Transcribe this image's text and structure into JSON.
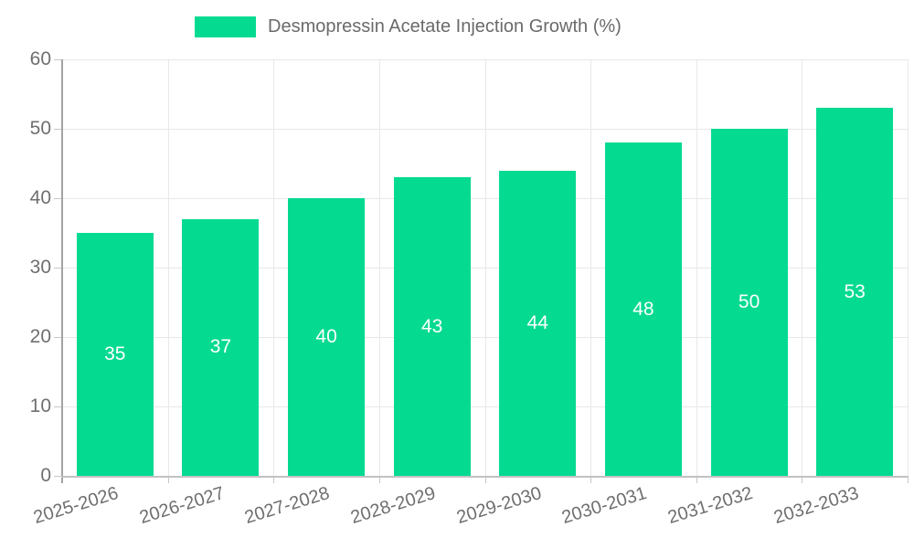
{
  "chart_data": {
    "type": "bar",
    "legend": "Desmopressin Acetate Injection Growth (%)",
    "legend_position": "top-center",
    "categories": [
      "2025-2026",
      "2026-2027",
      "2027-2028",
      "2028-2029",
      "2029-2030",
      "2030-2031",
      "2031-2032",
      "2032-2033"
    ],
    "values": [
      35,
      37,
      40,
      43,
      44,
      48,
      50,
      53
    ],
    "yticks": [
      0,
      10,
      20,
      30,
      40,
      50,
      60
    ],
    "ylim": [
      0,
      60
    ],
    "xlabel": "",
    "ylabel": "",
    "grid": true,
    "bar_color": "#05da91",
    "bar_label_color": "#ffffff",
    "axis_text_color": "#6f6f6f",
    "grid_color": "#e8e8e8"
  }
}
